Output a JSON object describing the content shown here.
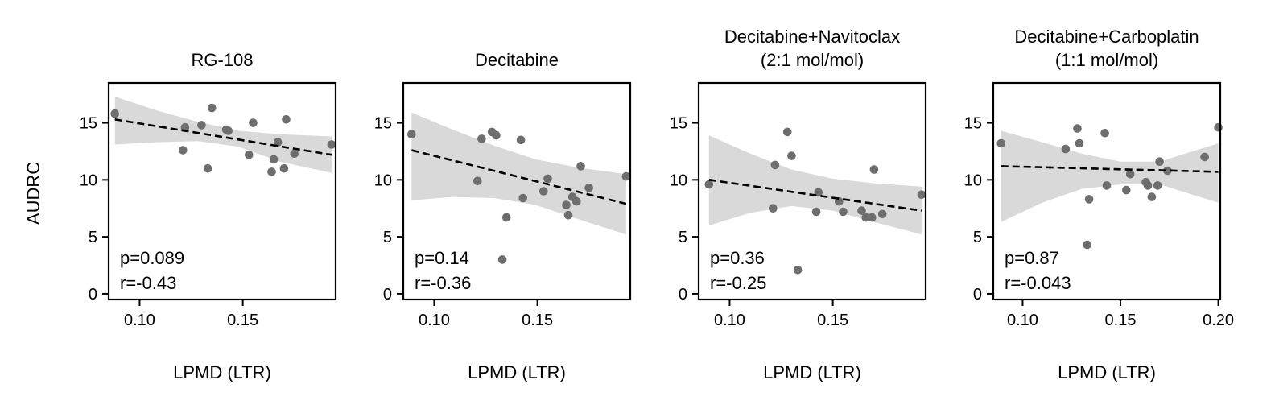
{
  "figure": {
    "ylabel": "AUDRC",
    "xlabel": "LPMD (LTR)"
  },
  "colors": {
    "points": "#6e6e6e",
    "band": "#d9d9d9",
    "fit_line": "#000000",
    "axes": "#000000"
  },
  "chart_data": [
    {
      "type": "scatter",
      "title": [
        "RG-108"
      ],
      "xlabel": "LPMD (LTR)",
      "ylabel": "AUDRC",
      "xlim": [
        0.085,
        0.195
      ],
      "ylim": [
        -0.5,
        18.5
      ],
      "xticks": [
        0.1,
        0.15
      ],
      "xtick_labels": [
        "0.10",
        "0.15"
      ],
      "yticks": [
        0,
        5,
        10,
        15
      ],
      "ytick_labels": [
        "0",
        "5",
        "10",
        "15"
      ],
      "points": [
        [
          0.088,
          15.8
        ],
        [
          0.122,
          14.6
        ],
        [
          0.121,
          12.6
        ],
        [
          0.13,
          14.8
        ],
        [
          0.133,
          11.0
        ],
        [
          0.135,
          16.3
        ],
        [
          0.142,
          14.4
        ],
        [
          0.143,
          14.3
        ],
        [
          0.153,
          12.2
        ],
        [
          0.155,
          15.0
        ],
        [
          0.164,
          10.7
        ],
        [
          0.165,
          11.8
        ],
        [
          0.167,
          13.3
        ],
        [
          0.17,
          11.0
        ],
        [
          0.171,
          15.3
        ],
        [
          0.175,
          12.3
        ],
        [
          0.193,
          13.1
        ]
      ],
      "fit": {
        "x": [
          0.088,
          0.193
        ],
        "y": [
          15.3,
          12.2
        ]
      },
      "band": {
        "x": [
          0.088,
          0.108,
          0.128,
          0.148,
          0.168,
          0.193
        ],
        "upper": [
          17.3,
          16.1,
          15.1,
          14.3,
          14.0,
          13.8
        ],
        "lower": [
          13.1,
          13.3,
          13.4,
          12.9,
          11.6,
          10.6
        ]
      },
      "stats": [
        "p=0.089",
        "r=-0.43"
      ]
    },
    {
      "type": "scatter",
      "title": [
        "Decitabine"
      ],
      "xlabel": "LPMD (LTR)",
      "ylabel": "",
      "xlim": [
        0.085,
        0.195
      ],
      "ylim": [
        -0.5,
        18.5
      ],
      "xticks": [
        0.1,
        0.15
      ],
      "xtick_labels": [
        "0.10",
        "0.15"
      ],
      "yticks": [
        0,
        5,
        10,
        15
      ],
      "ytick_labels": [
        "0",
        "5",
        "10",
        "15"
      ],
      "points": [
        [
          0.089,
          14.0
        ],
        [
          0.121,
          9.9
        ],
        [
          0.123,
          13.6
        ],
        [
          0.128,
          14.2
        ],
        [
          0.13,
          13.9
        ],
        [
          0.133,
          3.0
        ],
        [
          0.135,
          6.7
        ],
        [
          0.142,
          13.5
        ],
        [
          0.143,
          8.4
        ],
        [
          0.153,
          9.0
        ],
        [
          0.155,
          10.1
        ],
        [
          0.164,
          7.8
        ],
        [
          0.165,
          6.9
        ],
        [
          0.167,
          8.5
        ],
        [
          0.169,
          8.1
        ],
        [
          0.171,
          11.2
        ],
        [
          0.175,
          9.3
        ],
        [
          0.193,
          10.3
        ]
      ],
      "fit": {
        "x": [
          0.089,
          0.193
        ],
        "y": [
          12.6,
          7.9
        ]
      },
      "band": {
        "x": [
          0.089,
          0.109,
          0.129,
          0.149,
          0.169,
          0.193
        ],
        "upper": [
          15.9,
          14.4,
          13.0,
          11.8,
          11.1,
          10.5
        ],
        "lower": [
          8.2,
          8.5,
          8.4,
          7.8,
          6.6,
          5.2
        ]
      },
      "stats": [
        "p=0.14",
        "r=-0.36"
      ]
    },
    {
      "type": "scatter",
      "title": [
        "Decitabine+Navitoclax",
        "(2:1 mol/mol)"
      ],
      "xlabel": "LPMD (LTR)",
      "ylabel": "",
      "xlim": [
        0.085,
        0.195
      ],
      "ylim": [
        -0.5,
        18.5
      ],
      "xticks": [
        0.1,
        0.15
      ],
      "xtick_labels": [
        "0.10",
        "0.15"
      ],
      "yticks": [
        0,
        5,
        10,
        15
      ],
      "ytick_labels": [
        "0",
        "5",
        "10",
        "15"
      ],
      "points": [
        [
          0.09,
          9.6
        ],
        [
          0.121,
          7.5
        ],
        [
          0.122,
          11.3
        ],
        [
          0.128,
          14.2
        ],
        [
          0.13,
          12.1
        ],
        [
          0.133,
          2.1
        ],
        [
          0.142,
          7.2
        ],
        [
          0.143,
          8.9
        ],
        [
          0.153,
          8.1
        ],
        [
          0.155,
          7.2
        ],
        [
          0.164,
          7.3
        ],
        [
          0.166,
          6.7
        ],
        [
          0.169,
          6.7
        ],
        [
          0.17,
          10.9
        ],
        [
          0.174,
          7.0
        ],
        [
          0.193,
          8.7
        ]
      ],
      "fit": {
        "x": [
          0.09,
          0.193
        ],
        "y": [
          10.0,
          7.3
        ]
      },
      "band": {
        "x": [
          0.09,
          0.11,
          0.13,
          0.15,
          0.17,
          0.193
        ],
        "upper": [
          13.9,
          12.3,
          10.9,
          10.1,
          9.7,
          9.4
        ],
        "lower": [
          6.0,
          7.1,
          7.7,
          7.3,
          6.3,
          5.2
        ]
      },
      "stats": [
        "p=0.36",
        "r=-0.25"
      ]
    },
    {
      "type": "scatter",
      "title": [
        "Decitabine+Carboplatin",
        "(1:1 mol/mol)"
      ],
      "xlabel": "LPMD (LTR)",
      "ylabel": "",
      "xlim": [
        0.085,
        0.201
      ],
      "ylim": [
        -0.5,
        18.5
      ],
      "xticks": [
        0.1,
        0.15,
        0.2
      ],
      "xtick_labels": [
        "0.10",
        "0.15",
        "0.20"
      ],
      "yticks": [
        0,
        5,
        10,
        15
      ],
      "ytick_labels": [
        "0",
        "5",
        "10",
        "15"
      ],
      "points": [
        [
          0.089,
          13.2
        ],
        [
          0.122,
          12.7
        ],
        [
          0.128,
          14.5
        ],
        [
          0.129,
          13.2
        ],
        [
          0.133,
          4.3
        ],
        [
          0.134,
          8.3
        ],
        [
          0.142,
          14.1
        ],
        [
          0.143,
          9.5
        ],
        [
          0.153,
          9.1
        ],
        [
          0.155,
          10.5
        ],
        [
          0.163,
          9.8
        ],
        [
          0.164,
          9.5
        ],
        [
          0.166,
          8.5
        ],
        [
          0.169,
          9.5
        ],
        [
          0.17,
          11.6
        ],
        [
          0.174,
          10.8
        ],
        [
          0.193,
          12.0
        ],
        [
          0.2,
          14.6
        ]
      ],
      "fit": {
        "x": [
          0.089,
          0.2
        ],
        "y": [
          11.2,
          10.7
        ]
      },
      "band": {
        "x": [
          0.089,
          0.11,
          0.13,
          0.15,
          0.17,
          0.2
        ],
        "upper": [
          14.3,
          13.3,
          12.3,
          11.6,
          11.6,
          13.2
        ],
        "lower": [
          6.3,
          8.0,
          9.2,
          9.6,
          9.6,
          8.0
        ]
      },
      "stats": [
        "p=0.87",
        "r=-0.043"
      ]
    }
  ]
}
